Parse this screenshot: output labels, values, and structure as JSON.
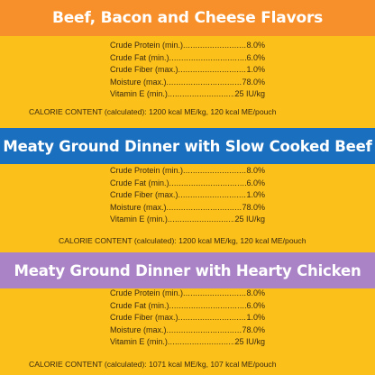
{
  "sections": [
    {
      "title": "Beef, Bacon and Cheese Flavors",
      "nutrients": [
        {
          "label": "Crude Protein (min.)",
          "value": "8.0%"
        },
        {
          "label": "Crude Fat (min.)",
          "value": "6.0%"
        },
        {
          "label": "Crude Fiber (max.)",
          "value": "1.0%"
        },
        {
          "label": "Moisture (max.)",
          "value": "78.0%"
        },
        {
          "label": "Vitamin E (min.)",
          "value": "25 IU/kg"
        }
      ],
      "calorie": "CALORIE CONTENT (calculated): 1200 kcal ME/kg, 120 kcal ME/pouch"
    },
    {
      "title": "Meaty Ground Dinner with Slow Cooked Beef",
      "nutrients": [
        {
          "label": "Crude Protein (min.)",
          "value": "8.0%"
        },
        {
          "label": "Crude Fat (min.)",
          "value": "6.0%"
        },
        {
          "label": "Crude Fiber (max.)",
          "value": "1.0%"
        },
        {
          "label": "Moisture (max.)",
          "value": "78.0%"
        },
        {
          "label": "Vitamin E (min.)",
          "value": "25 IU/kg"
        }
      ],
      "calorie": "CALORIE CONTENT (calculated): 1200 kcal ME/kg, 120 kcal ME/pouch"
    },
    {
      "title": "Meaty Ground Dinner with Hearty Chicken",
      "nutrients": [
        {
          "label": "Crude Protein (min.)",
          "value": "8.0%"
        },
        {
          "label": "Crude Fat (min.)",
          "value": "6.0%"
        },
        {
          "label": "Crude Fiber (max.)",
          "value": "1.0%"
        },
        {
          "label": "Moisture (max.)",
          "value": "78.0%"
        },
        {
          "label": "Vitamin E (min.)",
          "value": "25 IU/kg"
        }
      ],
      "calorie": "CALORIE CONTENT (calculated): 1071 kcal ME/kg, 107 kcal ME/pouch"
    }
  ],
  "colors": {
    "background": "#fcc01a",
    "banner_orange": "#f7902a",
    "banner_blue": "#1a6fbe",
    "banner_purple": "#a983c6"
  }
}
